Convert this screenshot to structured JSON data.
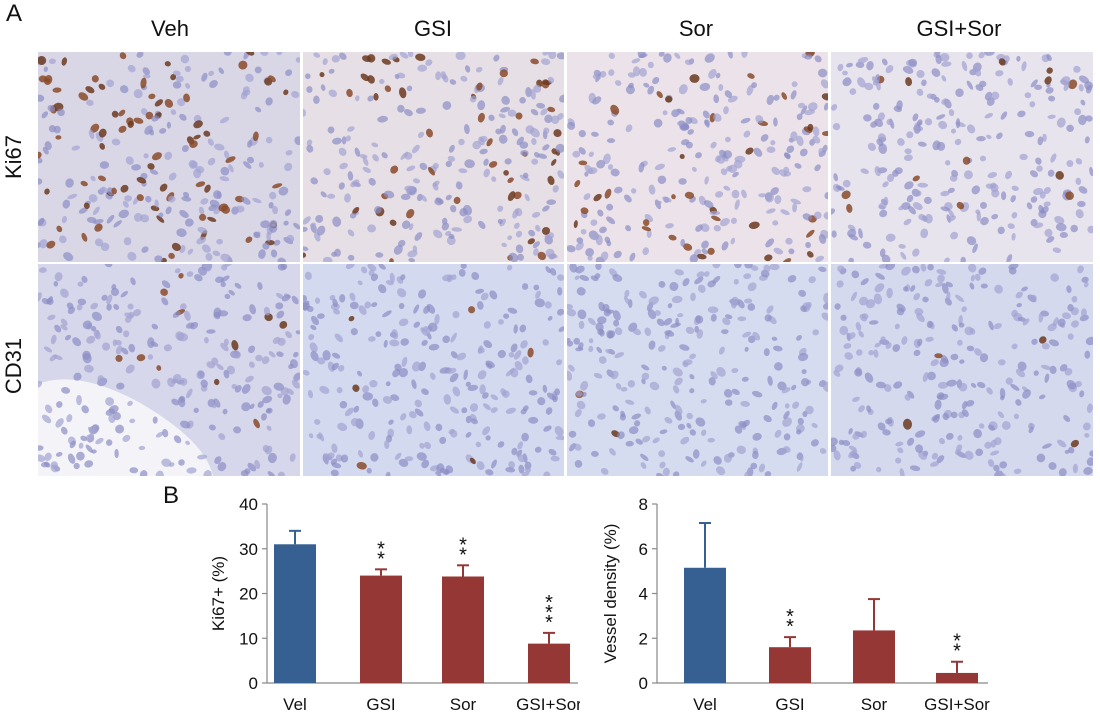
{
  "panel_a": {
    "letter": "A",
    "columns": [
      "Veh",
      "GSI",
      "Sor",
      "GSI+Sor"
    ],
    "rows": [
      "Ki67",
      "CD31"
    ]
  },
  "panel_b": {
    "letter": "B"
  },
  "colors": {
    "control": "#376092",
    "treated": "#953735"
  },
  "chart_data": [
    {
      "type": "bar",
      "categories": [
        "Vel",
        "GSI",
        "Sor",
        "GSI+Sor"
      ],
      "values": [
        31,
        24,
        23.8,
        8.8
      ],
      "errors": [
        3,
        1.4,
        2.5,
        2.4
      ],
      "significance": [
        "",
        "**",
        "**",
        "***"
      ],
      "ylabel": "Ki67+ (%)",
      "ylim": [
        0,
        40
      ],
      "yticks": [
        0,
        10,
        20,
        30,
        40
      ],
      "grid": false
    },
    {
      "type": "bar",
      "categories": [
        "Vel",
        "GSI",
        "Sor",
        "GSI+Sor"
      ],
      "values": [
        5.15,
        1.6,
        2.35,
        0.45
      ],
      "errors": [
        2.0,
        0.45,
        1.4,
        0.5
      ],
      "significance": [
        "",
        "**",
        "",
        "**"
      ],
      "ylabel": "Vessel density (%)",
      "ylim": [
        0,
        8
      ],
      "yticks": [
        0,
        2,
        4,
        6,
        8
      ],
      "grid": false
    }
  ]
}
